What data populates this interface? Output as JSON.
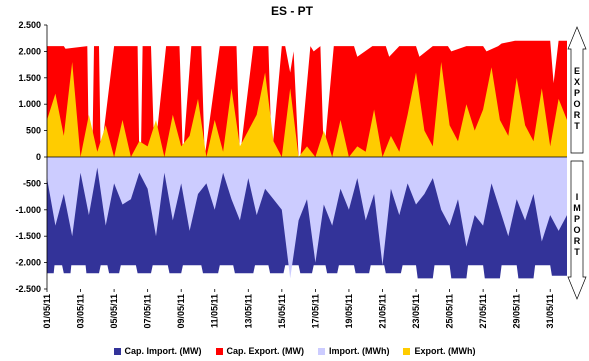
{
  "chart_data": {
    "type": "area",
    "title": "ES - PT",
    "ylim": [
      -2500,
      2500
    ],
    "y_ticks": [
      "2.500",
      "2.000",
      "1.500",
      "1.000",
      "500",
      "0",
      "-500",
      "-1.000",
      "-1.500",
      "-2.000",
      "-2.500"
    ],
    "x_ticks": [
      "01/05/11",
      "03/05/11",
      "05/05/11",
      "07/05/11",
      "09/05/11",
      "11/05/11",
      "13/05/11",
      "15/05/11",
      "17/05/11",
      "19/05/11",
      "21/05/11",
      "23/05/11",
      "25/05/11",
      "27/05/11",
      "29/05/11",
      "31/05/11"
    ],
    "side_labels": {
      "upper": "EXPORT",
      "lower": "IMPORT"
    },
    "grid": false,
    "legend_position": "bottom",
    "colors": {
      "cap_import": "#333399",
      "cap_export": "#ff0000",
      "import": "#ccccff",
      "export": "#ffcc00"
    },
    "x_day_start": 1,
    "x_day_end": 32,
    "series": [
      {
        "name": "Cap. Import. (MW)",
        "x": [
          1,
          1.4,
          1.45,
          1.9,
          2,
          2.4,
          2.45,
          3.3,
          3.35,
          4.1,
          4.2,
          4.6,
          4.7,
          5.3,
          5.4,
          6.3,
          6.4,
          7.2,
          7.3,
          8.2,
          8.3,
          9.0,
          9.1,
          10.2,
          10.3,
          11.2,
          11.3,
          12.1,
          12.2,
          13.3,
          13.4,
          14.2,
          14.3,
          15.1,
          15.2,
          16.0,
          16.1,
          16.8,
          16.9,
          17.6,
          17.7,
          18.3,
          18.4,
          19.3,
          19.4,
          20.2,
          20.3,
          21.1,
          21.2,
          22.1,
          22.2,
          23.0,
          23.1,
          24.0,
          24.1,
          25.0,
          25.1,
          26.0,
          26.1,
          27.0,
          27.1,
          28.0,
          28.1,
          29.0,
          29.1,
          30.0,
          30.1,
          31.0,
          31.1,
          32
        ],
        "values": [
          -2200,
          -2200,
          -2050,
          -2050,
          -2200,
          -2200,
          -2050,
          -2050,
          -2200,
          -2200,
          -2050,
          -2050,
          -2200,
          -2200,
          -2050,
          -2050,
          -2200,
          -2200,
          -2050,
          -2050,
          -2200,
          -2200,
          -2050,
          -2050,
          -2200,
          -2200,
          -2050,
          -2050,
          -2200,
          -2200,
          -2050,
          -2050,
          -2200,
          -2200,
          -2050,
          -2050,
          -2200,
          -2200,
          -2050,
          -2050,
          -2200,
          -2200,
          -2050,
          -2050,
          -2200,
          -2200,
          -2050,
          -2050,
          -2200,
          -2200,
          -2050,
          -2050,
          -2300,
          -2300,
          -2050,
          -2050,
          -2300,
          -2300,
          -2050,
          -2050,
          -2300,
          -2300,
          -2050,
          -2050,
          -2300,
          -2300,
          -2050,
          -2050,
          -2250,
          -2250
        ]
      },
      {
        "name": "Cap. Export. (MW)",
        "x": [
          1,
          2.0,
          2.1,
          3.4,
          3.5,
          3.7,
          3.8,
          4.1,
          4.2,
          5.0,
          5.2,
          6.4,
          6.5,
          6.6,
          6.7,
          7.2,
          7.4,
          8.1,
          8.3,
          8.9,
          9.1,
          9.6,
          9.8,
          10.2,
          10.4,
          11.3,
          11.4,
          12.3,
          12.5,
          13.3,
          13.5,
          14.2,
          14.4,
          15.0,
          15.2,
          15.5,
          15.7,
          16.0,
          16.1,
          16.7,
          16.9,
          17.3,
          17.5,
          18.1,
          18.3,
          19.3,
          19.5,
          20.4,
          20.6,
          21.2,
          21.4,
          22.0,
          22.2,
          23.0,
          23.2,
          24.0,
          24.2,
          24.9,
          25.1,
          26.0,
          26.2,
          27.0,
          27.2,
          27.9,
          28.1,
          28.9,
          29.1,
          30.2,
          30.4,
          31.0,
          31.2,
          31.5,
          31.7,
          32
        ],
        "values": [
          2100,
          2100,
          2050,
          2100,
          0,
          0,
          2100,
          2100,
          0,
          2100,
          2100,
          2100,
          0,
          0,
          2100,
          2100,
          0,
          2100,
          2100,
          2100,
          0,
          2100,
          2100,
          2100,
          0,
          2100,
          2100,
          2100,
          0,
          2100,
          2100,
          2100,
          0,
          2100,
          2100,
          1600,
          2000,
          0,
          0,
          2100,
          2000,
          2100,
          0,
          2100,
          2100,
          2100,
          1900,
          2100,
          2100,
          2100,
          1900,
          2100,
          2100,
          2100,
          1900,
          2100,
          2100,
          2100,
          2000,
          2100,
          2100,
          2100,
          2000,
          2100,
          2150,
          2200,
          2200,
          2200,
          2200,
          2200,
          1400,
          2200,
          2200,
          2200
        ]
      },
      {
        "name": "Import. (MWh)",
        "x": [
          1,
          1.5,
          2,
          2.5,
          3,
          3.5,
          4,
          4.5,
          5,
          5.5,
          6,
          6.5,
          7,
          7.5,
          8,
          8.5,
          9,
          9.5,
          10,
          10.5,
          11,
          11.5,
          12,
          12.5,
          13,
          13.5,
          14,
          14.5,
          15,
          15.5,
          16,
          16.5,
          17,
          17.5,
          18,
          18.5,
          19,
          19.5,
          20,
          20.5,
          21,
          21.5,
          22,
          22.5,
          23,
          23.5,
          24,
          24.5,
          25,
          25.5,
          26,
          26.5,
          27,
          27.5,
          28,
          28.5,
          29,
          29.5,
          30,
          30.5,
          31,
          31.5,
          32
        ],
        "values": [
          -400,
          -1300,
          -700,
          -1500,
          -300,
          -1100,
          -200,
          -1300,
          -500,
          -900,
          -800,
          -300,
          -600,
          -1500,
          -300,
          -1200,
          -500,
          -1400,
          -700,
          -500,
          -1000,
          -300,
          -800,
          -1200,
          -400,
          -1100,
          -600,
          -800,
          -1000,
          -2300,
          -1200,
          -800,
          -2000,
          -900,
          -1300,
          -600,
          -1000,
          -400,
          -1200,
          -700,
          -2050,
          -600,
          -1100,
          -500,
          -900,
          -700,
          -400,
          -1000,
          -1300,
          -800,
          -1700,
          -1100,
          -1300,
          -500,
          -1000,
          -1500,
          -800,
          -1200,
          -700,
          -1600,
          -1100,
          -1400,
          -1100
        ]
      },
      {
        "name": "Export. (MWh)",
        "x": [
          1,
          1.5,
          2,
          2.5,
          3,
          3.5,
          4,
          4.5,
          5,
          5.5,
          6,
          6.5,
          7,
          7.5,
          8,
          8.5,
          9,
          9.5,
          10,
          10.5,
          11,
          11.5,
          12,
          12.5,
          13,
          13.5,
          14,
          14.5,
          15,
          15.5,
          16,
          16.5,
          17,
          17.5,
          18,
          18.5,
          19,
          19.5,
          20,
          20.5,
          21,
          21.5,
          22,
          22.5,
          23,
          23.5,
          24,
          24.5,
          25,
          25.5,
          26,
          26.5,
          27,
          27.5,
          28,
          28.5,
          29,
          29.5,
          30,
          30.5,
          31,
          31.5,
          32
        ],
        "values": [
          700,
          1200,
          400,
          1800,
          0,
          800,
          100,
          600,
          0,
          700,
          0,
          300,
          200,
          700,
          0,
          800,
          200,
          400,
          1100,
          0,
          700,
          100,
          1300,
          200,
          500,
          800,
          1600,
          300,
          0,
          1300,
          0,
          200,
          0,
          500,
          0,
          700,
          0,
          200,
          100,
          900,
          0,
          400,
          100,
          800,
          1600,
          500,
          200,
          1800,
          600,
          300,
          1000,
          500,
          900,
          1700,
          700,
          400,
          1500,
          600,
          300,
          1300,
          200,
          1100,
          700
        ]
      }
    ]
  }
}
